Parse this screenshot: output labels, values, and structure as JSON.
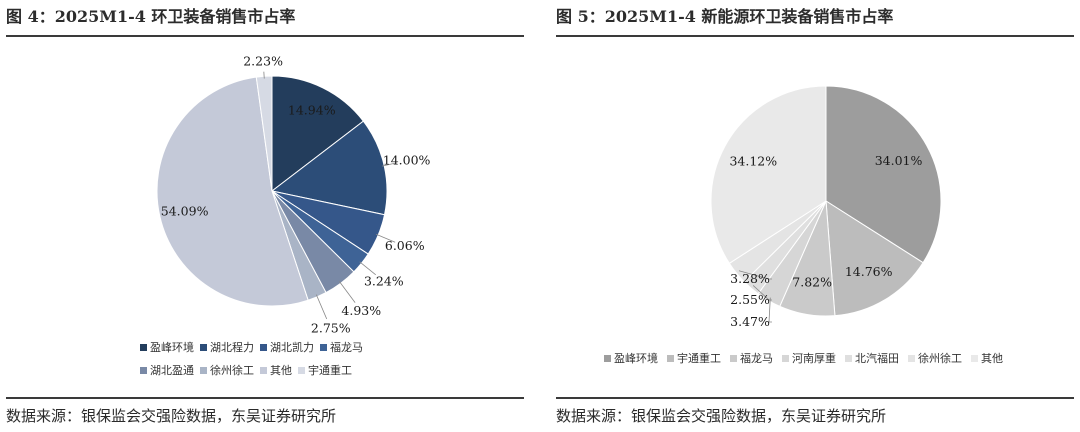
{
  "source_text": "数据来源：银保监会交强险数据，东吴证券研究所",
  "chart_data": [
    {
      "type": "pie",
      "title": "图 4：2025M1-4 环卫装备销售市占率",
      "start_angle": 0,
      "slices": [
        {
          "name": "盈峰环境",
          "value": 14.94,
          "label": "14.94%",
          "color": "#233d5c"
        },
        {
          "name": "湖北程力",
          "value": 14.0,
          "label": "14.00%",
          "color": "#2c4d78"
        },
        {
          "name": "湖北凯力",
          "value": 6.06,
          "label": "6.06%",
          "color": "#35578a"
        },
        {
          "name": "福龙马",
          "value": 3.24,
          "label": "3.24%",
          "color": "#3e6396"
        },
        {
          "name": "湖北盈通",
          "value": 4.93,
          "label": "4.93%",
          "color": "#7989a6"
        },
        {
          "name": "徐州徐工",
          "value": 2.75,
          "label": "2.75%",
          "color": "#a9b4c6"
        },
        {
          "name": "其他",
          "value": 54.09,
          "label": "54.09%",
          "color": "#c4c9d8"
        },
        {
          "name": "宇通重工",
          "value": 2.23,
          "label": "2.23%",
          "color": "#d6dae4"
        }
      ]
    },
    {
      "type": "pie",
      "title": "图 5：2025M1-4 新能源环卫装备销售市占率",
      "start_angle": 0,
      "slices": [
        {
          "name": "盈峰环境",
          "value": 34.01,
          "label": "34.01%",
          "color": "#9d9d9d"
        },
        {
          "name": "宇通重工",
          "value": 14.76,
          "label": "14.76%",
          "color": "#bcbcbc"
        },
        {
          "name": "福龙马",
          "value": 7.82,
          "label": "7.82%",
          "color": "#cacaca"
        },
        {
          "name": "河南厚重",
          "value": 3.47,
          "label": "3.47%",
          "color": "#d6d6d6"
        },
        {
          "name": "北汽福田",
          "value": 2.55,
          "label": "2.55%",
          "color": "#dfdfdf"
        },
        {
          "name": "徐州徐工",
          "value": 3.28,
          "label": "3.28%",
          "color": "#e4e4e4"
        },
        {
          "name": "其他",
          "value": 34.12,
          "label": "34.12%",
          "color": "#e9e9e9"
        }
      ]
    }
  ]
}
